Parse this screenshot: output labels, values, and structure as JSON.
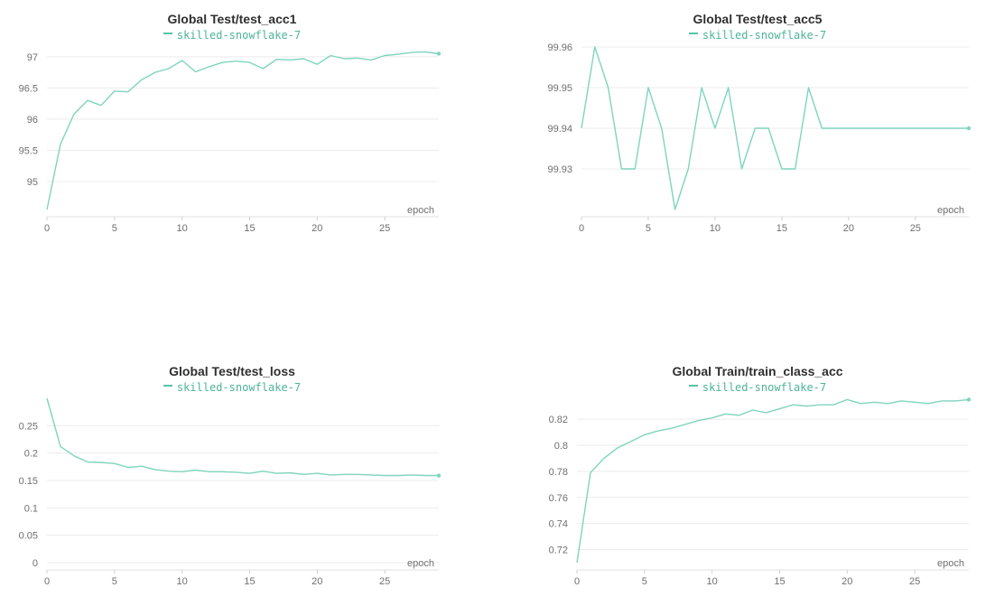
{
  "charts": [
    {
      "title": "Global Test/test_acc1",
      "legend": "skilled-snowflake-7",
      "xlabel": "epoch",
      "color": "#7fd4bd",
      "xticks": [
        0,
        5,
        10,
        15,
        20,
        25
      ],
      "yticks": [
        "95",
        "95.5",
        "96",
        "96.5",
        "97"
      ],
      "xlim": [
        0,
        29
      ],
      "ylim": [
        94.55,
        97.1
      ],
      "x": [
        0,
        1,
        2,
        3,
        4,
        5,
        6,
        7,
        8,
        9,
        10,
        11,
        12,
        13,
        14,
        15,
        16,
        17,
        18,
        19,
        20,
        21,
        22,
        23,
        24,
        25,
        26,
        27,
        28,
        29
      ],
      "y": [
        94.55,
        95.6,
        96.08,
        96.3,
        96.22,
        96.45,
        96.44,
        96.63,
        96.75,
        96.81,
        96.94,
        96.76,
        96.84,
        96.91,
        96.93,
        96.91,
        96.81,
        96.96,
        96.95,
        96.97,
        96.88,
        97.02,
        96.97,
        96.98,
        96.95,
        97.02,
        97.04,
        97.07,
        97.08,
        97.05
      ]
    },
    {
      "title": "Global Test/test_acc5",
      "legend": "skilled-snowflake-7",
      "xlabel": "epoch",
      "color": "#7fd4bd",
      "xticks": [
        0,
        5,
        10,
        15,
        20,
        25
      ],
      "yticks": [
        "99.93",
        "99.94",
        "99.95",
        "99.96"
      ],
      "xlim": [
        0,
        29
      ],
      "ylim": [
        99.92,
        99.96
      ],
      "x": [
        0,
        1,
        2,
        3,
        4,
        5,
        6,
        7,
        8,
        9,
        10,
        11,
        12,
        13,
        14,
        15,
        16,
        17,
        18,
        19,
        20,
        21,
        22,
        23,
        24,
        25,
        26,
        27,
        28,
        29
      ],
      "y": [
        99.94,
        99.96,
        99.95,
        99.93,
        99.93,
        99.95,
        99.94,
        99.92,
        99.93,
        99.95,
        99.94,
        99.95,
        99.93,
        99.94,
        99.94,
        99.93,
        99.93,
        99.95,
        99.94,
        99.94,
        99.94,
        99.94,
        99.94,
        99.94,
        99.94,
        99.94,
        99.94,
        99.94,
        99.94,
        99.94
      ]
    },
    {
      "title": "Global Test/test_loss",
      "legend": "skilled-snowflake-7",
      "xlabel": "epoch",
      "color": "#7fd4bd",
      "xticks": [
        0,
        5,
        10,
        15,
        20,
        25
      ],
      "yticks": [
        "0",
        "0.05",
        "0.1",
        "0.15",
        "0.2",
        "0.25"
      ],
      "xlim": [
        0,
        29
      ],
      "ylim": [
        0,
        0.3
      ],
      "x": [
        0,
        1,
        2,
        3,
        4,
        5,
        6,
        7,
        8,
        9,
        10,
        11,
        12,
        13,
        14,
        15,
        16,
        17,
        18,
        19,
        20,
        21,
        22,
        23,
        24,
        25,
        26,
        27,
        28,
        29
      ],
      "y": [
        0.3,
        0.212,
        0.195,
        0.184,
        0.183,
        0.181,
        0.174,
        0.176,
        0.17,
        0.167,
        0.166,
        0.169,
        0.166,
        0.166,
        0.165,
        0.163,
        0.167,
        0.163,
        0.164,
        0.161,
        0.163,
        0.16,
        0.161,
        0.161,
        0.16,
        0.159,
        0.159,
        0.16,
        0.159,
        0.159
      ]
    },
    {
      "title": "Global Train/train_class_acc",
      "legend": "skilled-snowflake-7",
      "xlabel": "epoch",
      "color": "#7fd4bd",
      "xticks": [
        0,
        5,
        10,
        15,
        20,
        25
      ],
      "yticks": [
        "0.72",
        "0.74",
        "0.76",
        "0.78",
        "0.8",
        "0.82"
      ],
      "xlim": [
        0,
        29
      ],
      "ylim": [
        0.71,
        0.836
      ],
      "x": [
        0,
        1,
        2,
        3,
        4,
        5,
        6,
        7,
        8,
        9,
        10,
        11,
        12,
        13,
        14,
        15,
        16,
        17,
        18,
        19,
        20,
        21,
        22,
        23,
        24,
        25,
        26,
        27,
        28,
        29
      ],
      "y": [
        0.71,
        0.779,
        0.79,
        0.798,
        0.803,
        0.808,
        0.811,
        0.813,
        0.816,
        0.819,
        0.821,
        0.824,
        0.823,
        0.827,
        0.825,
        0.828,
        0.831,
        0.83,
        0.831,
        0.831,
        0.835,
        0.832,
        0.833,
        0.832,
        0.834,
        0.833,
        0.832,
        0.834,
        0.834,
        0.835
      ]
    }
  ]
}
